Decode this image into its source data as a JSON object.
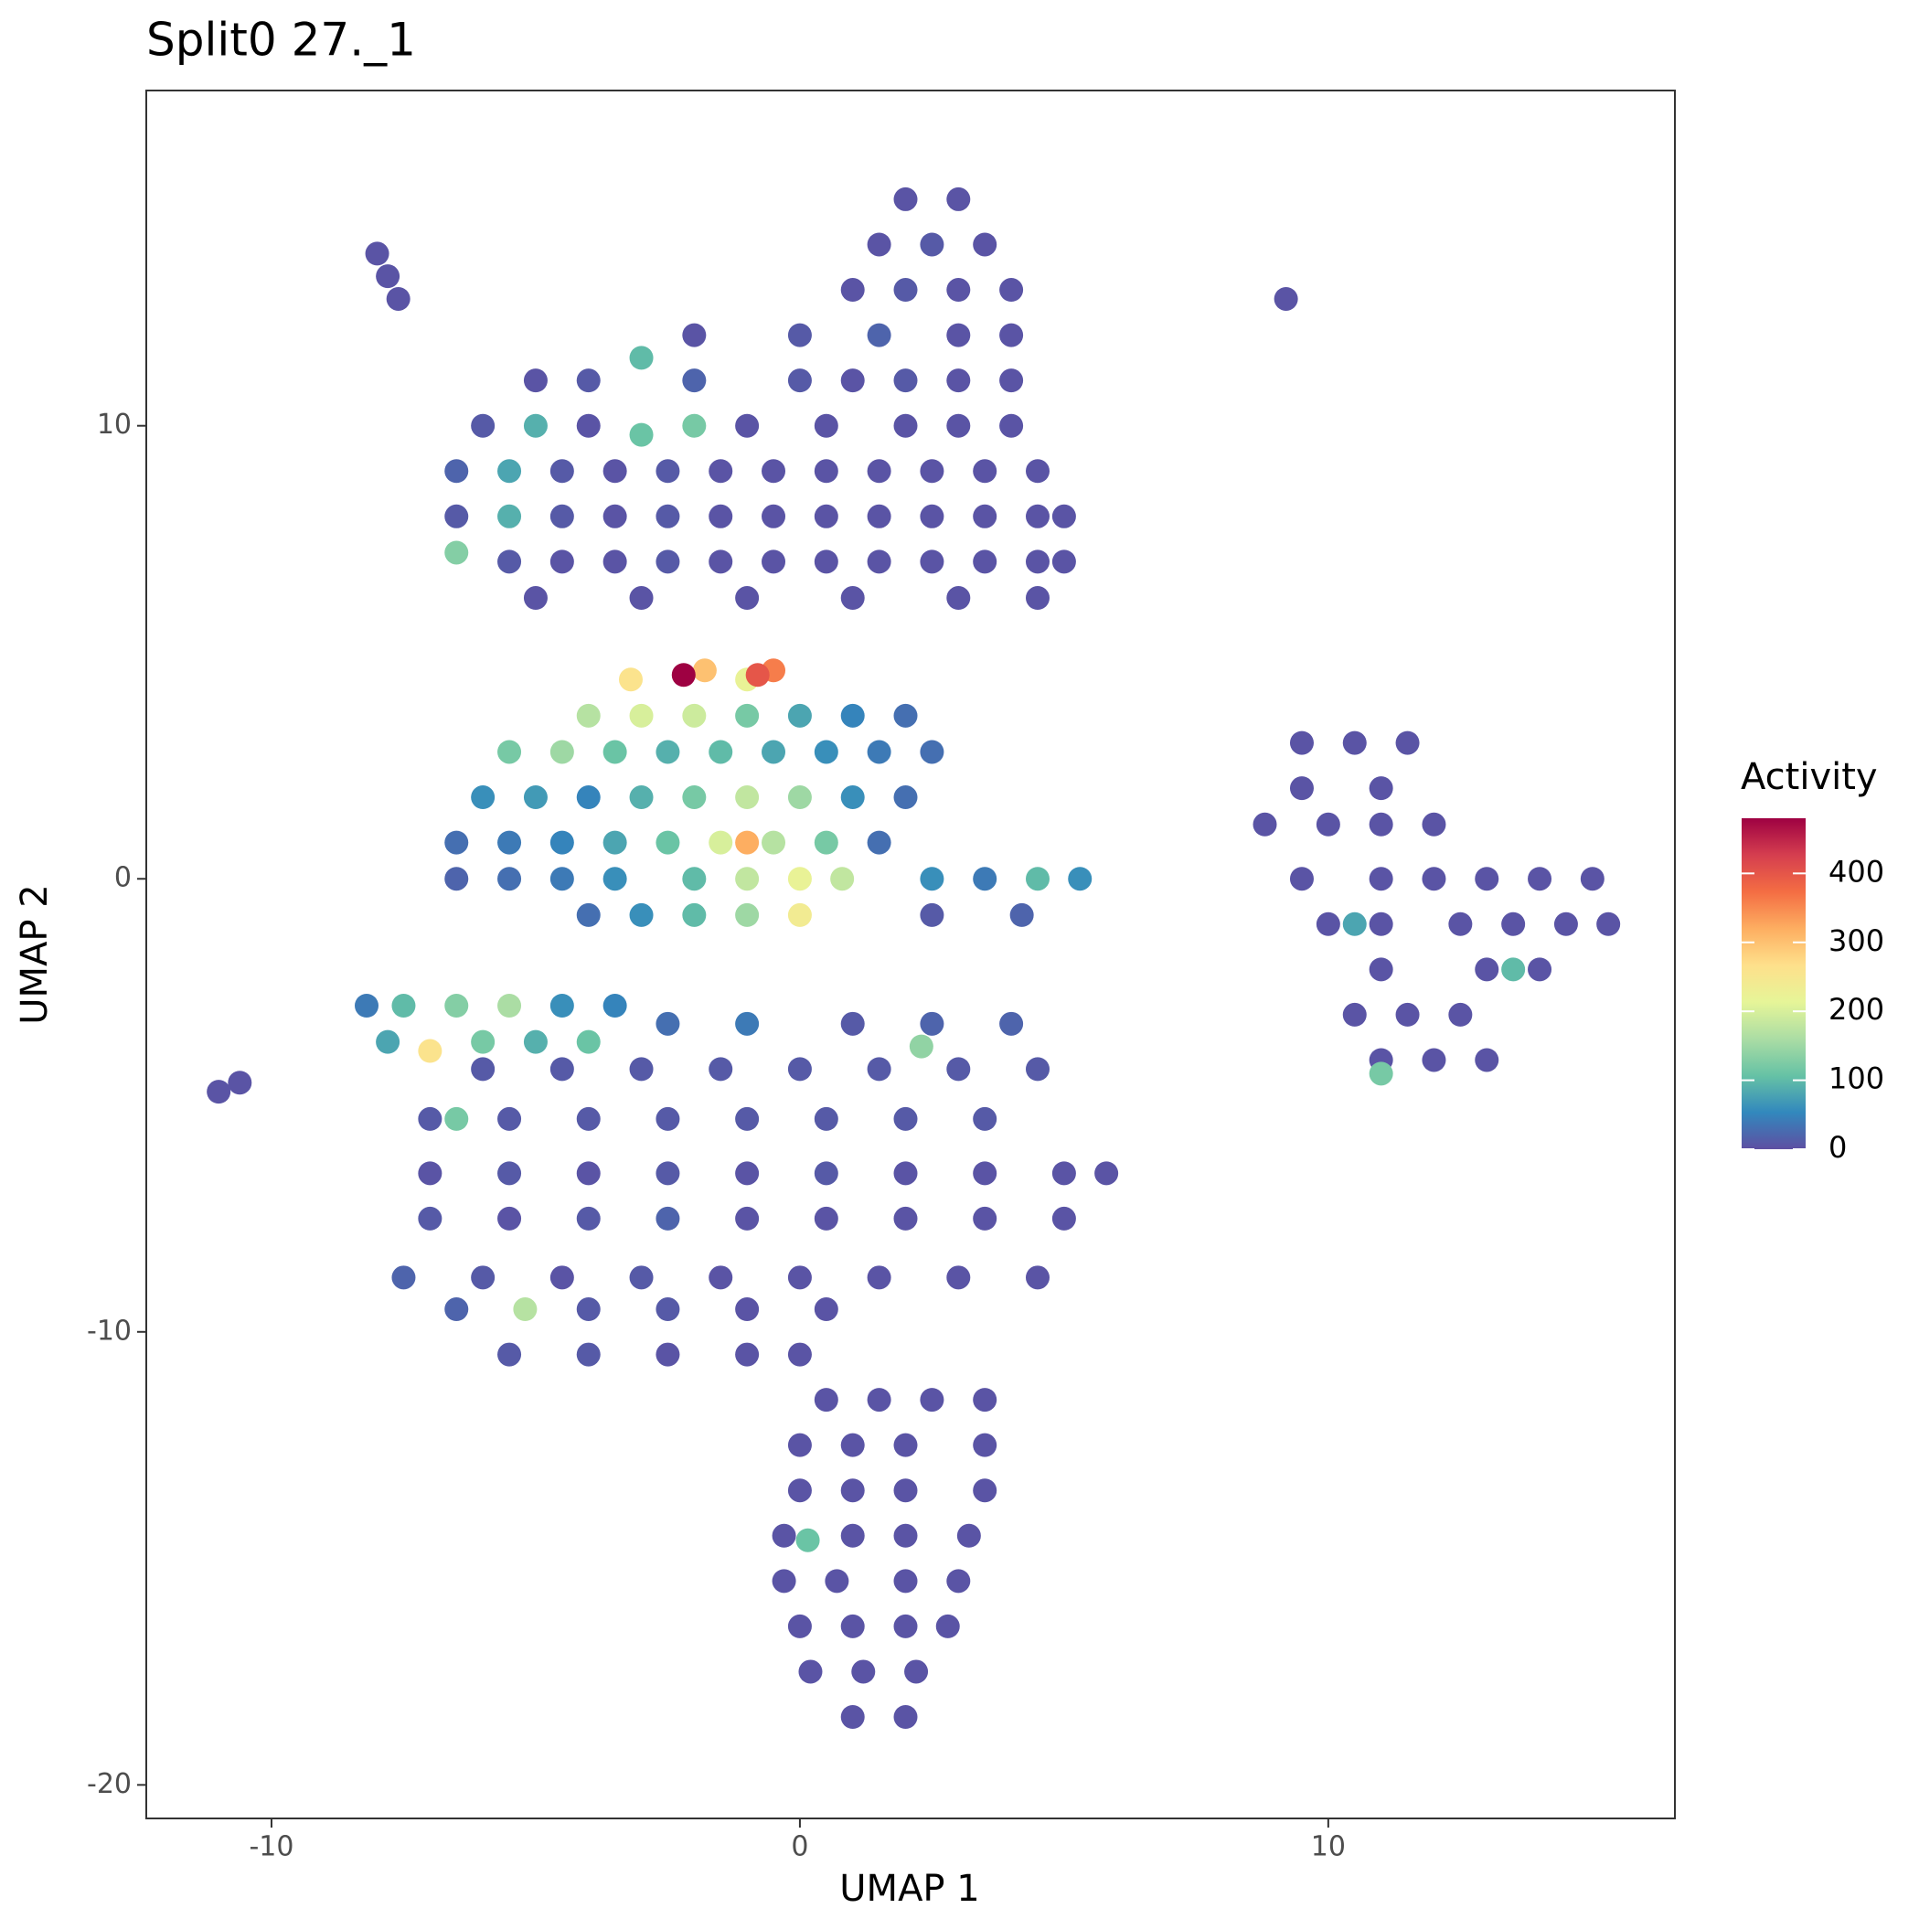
{
  "chart_data": {
    "type": "scatter",
    "title": "Split0 27._1",
    "x_label": "UMAP 1",
    "y_label": "UMAP 2",
    "legend_title": "Activity",
    "xlim": [
      -12.37,
      16.56
    ],
    "ylim": [
      -20.74,
      17.4
    ],
    "xticks": [
      -10,
      0,
      10
    ],
    "yticks": [
      -20,
      -10,
      0,
      10
    ],
    "clim": [
      0,
      480
    ],
    "cticks": [
      0,
      100,
      200,
      300,
      400
    ],
    "colorscale": [
      "#5E4FA2",
      "#3288BD",
      "#66C2A5",
      "#ABDDA4",
      "#E6F598",
      "#FEE08B",
      "#FDAE61",
      "#F46D43",
      "#D53E4F",
      "#9E0142"
    ],
    "points": [
      [
        -8,
        13.8,
        5
      ],
      [
        -7.8,
        13.3,
        5
      ],
      [
        -7.6,
        12.8,
        5
      ],
      [
        9.2,
        12.8,
        5
      ],
      [
        -11,
        -4.7,
        5
      ],
      [
        -10.6,
        -4.5,
        5
      ],
      [
        2,
        15,
        5
      ],
      [
        3,
        15,
        5
      ],
      [
        1.5,
        14,
        5
      ],
      [
        2.5,
        14,
        10
      ],
      [
        3.5,
        14,
        5
      ],
      [
        1,
        13,
        5
      ],
      [
        2,
        13,
        10
      ],
      [
        3,
        13,
        5
      ],
      [
        4,
        13,
        5
      ],
      [
        -2,
        12,
        5
      ],
      [
        0,
        12,
        10
      ],
      [
        1.5,
        12,
        20
      ],
      [
        3,
        12,
        5
      ],
      [
        4,
        12,
        5
      ],
      [
        -5,
        11,
        5
      ],
      [
        -4,
        11,
        10
      ],
      [
        -3,
        11.5,
        100
      ],
      [
        -2,
        11,
        20
      ],
      [
        0,
        11,
        10
      ],
      [
        1,
        11,
        5
      ],
      [
        2,
        11,
        10
      ],
      [
        3,
        11,
        5
      ],
      [
        4,
        11,
        5
      ],
      [
        -6,
        10,
        10
      ],
      [
        -5,
        10,
        90
      ],
      [
        -4,
        10,
        5
      ],
      [
        -3,
        9.8,
        110
      ],
      [
        -2,
        10,
        120
      ],
      [
        -1,
        10,
        5
      ],
      [
        0.5,
        10,
        5
      ],
      [
        2,
        10,
        5
      ],
      [
        3,
        10,
        5
      ],
      [
        4,
        10,
        5
      ],
      [
        -6.5,
        9,
        20
      ],
      [
        -5.5,
        9,
        80
      ],
      [
        -4.5,
        9,
        10
      ],
      [
        -3.5,
        9,
        5
      ],
      [
        -2.5,
        9,
        10
      ],
      [
        -1.5,
        9,
        5
      ],
      [
        -0.5,
        9,
        5
      ],
      [
        0.5,
        9,
        5
      ],
      [
        1.5,
        9,
        5
      ],
      [
        2.5,
        9,
        5
      ],
      [
        3.5,
        9,
        5
      ],
      [
        4.5,
        9,
        5
      ],
      [
        -6.5,
        8,
        10
      ],
      [
        -5.5,
        8,
        90
      ],
      [
        -4.5,
        8,
        10
      ],
      [
        -3.5,
        8,
        5
      ],
      [
        -2.5,
        8,
        10
      ],
      [
        -1.5,
        8,
        5
      ],
      [
        -0.5,
        8,
        5
      ],
      [
        0.5,
        8,
        5
      ],
      [
        1.5,
        8,
        5
      ],
      [
        2.5,
        8,
        5
      ],
      [
        3.5,
        8,
        5
      ],
      [
        4.5,
        8,
        5
      ],
      [
        5,
        8,
        5
      ],
      [
        -6.5,
        7.2,
        130
      ],
      [
        -5.5,
        7,
        10
      ],
      [
        -4.5,
        7,
        5
      ],
      [
        -3.5,
        7,
        5
      ],
      [
        -2.5,
        7,
        10
      ],
      [
        -1.5,
        7,
        5
      ],
      [
        -0.5,
        7,
        5
      ],
      [
        0.5,
        7,
        5
      ],
      [
        1.5,
        7,
        5
      ],
      [
        2.5,
        7,
        5
      ],
      [
        3.5,
        7,
        5
      ],
      [
        4.5,
        7,
        5
      ],
      [
        5,
        7,
        5
      ],
      [
        -5,
        6.2,
        5
      ],
      [
        -3,
        6.2,
        5
      ],
      [
        -1,
        6.2,
        5
      ],
      [
        1,
        6.2,
        5
      ],
      [
        3,
        6.2,
        5
      ],
      [
        4.5,
        6.2,
        5
      ],
      [
        -2.5,
        -3.2,
        30
      ],
      [
        -1,
        -3.2,
        40
      ],
      [
        1,
        -3.2,
        10
      ],
      [
        2.5,
        -3.2,
        20
      ],
      [
        4,
        -3.2,
        20
      ],
      [
        -6,
        -4.2,
        10
      ],
      [
        -4.5,
        -4.2,
        10
      ],
      [
        -3,
        -4.2,
        10
      ],
      [
        -1.5,
        -4.2,
        10
      ],
      [
        0,
        -4.2,
        10
      ],
      [
        1.5,
        -4.2,
        10
      ],
      [
        2.3,
        -3.7,
        140
      ],
      [
        3,
        -4.2,
        10
      ],
      [
        4.5,
        -4.2,
        10
      ],
      [
        -7,
        -5.3,
        10
      ],
      [
        -6.5,
        -5.3,
        120
      ],
      [
        -5.5,
        -5.3,
        10
      ],
      [
        -4,
        -5.3,
        10
      ],
      [
        -2.5,
        -5.3,
        10
      ],
      [
        -1,
        -5.3,
        10
      ],
      [
        0.5,
        -5.3,
        10
      ],
      [
        2,
        -5.3,
        10
      ],
      [
        3.5,
        -5.3,
        10
      ],
      [
        -7,
        -6.5,
        5
      ],
      [
        -5.5,
        -6.5,
        10
      ],
      [
        -4,
        -6.5,
        5
      ],
      [
        -2.5,
        -6.5,
        10
      ],
      [
        -1,
        -6.5,
        5
      ],
      [
        0.5,
        -6.5,
        10
      ],
      [
        2,
        -6.5,
        5
      ],
      [
        3.5,
        -6.5,
        5
      ],
      [
        5,
        -6.5,
        5
      ],
      [
        5.8,
        -6.5,
        5
      ],
      [
        -7,
        -7.5,
        10
      ],
      [
        -5.5,
        -7.5,
        5
      ],
      [
        -4,
        -7.5,
        10
      ],
      [
        -2.5,
        -7.5,
        20
      ],
      [
        -1,
        -7.5,
        5
      ],
      [
        0.5,
        -7.5,
        5
      ],
      [
        2,
        -7.5,
        5
      ],
      [
        3.5,
        -7.5,
        5
      ],
      [
        5,
        -7.5,
        5
      ],
      [
        -7.5,
        -8.8,
        20
      ],
      [
        -6,
        -8.8,
        10
      ],
      [
        -4.5,
        -8.8,
        5
      ],
      [
        -3,
        -8.8,
        10
      ],
      [
        -1.5,
        -8.8,
        5
      ],
      [
        0,
        -8.8,
        5
      ],
      [
        1.5,
        -8.8,
        5
      ],
      [
        3,
        -8.8,
        5
      ],
      [
        4.5,
        -8.8,
        5
      ],
      [
        -6.5,
        -9.5,
        20
      ],
      [
        -5.2,
        -9.5,
        170
      ],
      [
        -4,
        -9.5,
        10
      ],
      [
        -2.5,
        -9.5,
        10
      ],
      [
        -1,
        -9.5,
        5
      ],
      [
        0.5,
        -9.5,
        5
      ],
      [
        -5.5,
        -10.5,
        10
      ],
      [
        -4,
        -10.5,
        10
      ],
      [
        -2.5,
        -10.5,
        5
      ],
      [
        -1,
        -10.5,
        5
      ],
      [
        0,
        -10.5,
        5
      ],
      [
        0.5,
        -11.5,
        5
      ],
      [
        1.5,
        -11.5,
        5
      ],
      [
        2.5,
        -11.5,
        5
      ],
      [
        3.5,
        -11.5,
        5
      ],
      [
        0,
        -12.5,
        5
      ],
      [
        1,
        -12.5,
        5
      ],
      [
        2,
        -12.5,
        5
      ],
      [
        3.5,
        -12.5,
        5
      ],
      [
        0,
        -13.5,
        5
      ],
      [
        1,
        -13.5,
        5
      ],
      [
        2,
        -13.5,
        5
      ],
      [
        3.5,
        -13.5,
        5
      ],
      [
        -0.3,
        -14.5,
        5
      ],
      [
        0.15,
        -14.6,
        110
      ],
      [
        1,
        -14.5,
        5
      ],
      [
        2,
        -14.5,
        5
      ],
      [
        3.2,
        -14.5,
        5
      ],
      [
        -0.3,
        -15.5,
        5
      ],
      [
        0.7,
        -15.5,
        5
      ],
      [
        2,
        -15.5,
        5
      ],
      [
        3,
        -15.5,
        5
      ],
      [
        0,
        -16.5,
        5
      ],
      [
        1,
        -16.5,
        5
      ],
      [
        2,
        -16.5,
        5
      ],
      [
        2.8,
        -16.5,
        5
      ],
      [
        0.2,
        -17.5,
        5
      ],
      [
        1.2,
        -17.5,
        5
      ],
      [
        2.2,
        -17.5,
        5
      ],
      [
        1,
        -18.5,
        5
      ],
      [
        2,
        -18.5,
        5
      ],
      [
        9.5,
        3,
        5
      ],
      [
        10.5,
        3,
        5
      ],
      [
        11.5,
        3,
        5
      ],
      [
        9.5,
        2,
        5
      ],
      [
        11,
        2,
        5
      ],
      [
        8.8,
        1.2,
        5
      ],
      [
        10,
        1.2,
        5
      ],
      [
        11,
        1.2,
        5
      ],
      [
        12,
        1.2,
        5
      ],
      [
        9.5,
        0,
        5
      ],
      [
        11,
        0,
        5
      ],
      [
        12,
        0,
        5
      ],
      [
        13,
        0,
        5
      ],
      [
        14,
        0,
        5
      ],
      [
        15,
        0,
        5
      ],
      [
        10,
        -1,
        5
      ],
      [
        10.5,
        -1,
        80
      ],
      [
        11,
        -1,
        5
      ],
      [
        12.5,
        -1,
        5
      ],
      [
        13.5,
        -1,
        5
      ],
      [
        14.5,
        -1,
        5
      ],
      [
        15.3,
        -1,
        5
      ],
      [
        11,
        -2,
        5
      ],
      [
        13,
        -2,
        5
      ],
      [
        13.5,
        -2,
        100
      ],
      [
        14,
        -2,
        5
      ],
      [
        10.5,
        -3,
        5
      ],
      [
        11.5,
        -3,
        5
      ],
      [
        12.5,
        -3,
        5
      ],
      [
        11,
        -4,
        5
      ],
      [
        11,
        -4.3,
        120
      ],
      [
        12,
        -4,
        5
      ],
      [
        13,
        -4,
        5
      ],
      [
        -8.2,
        -2.8,
        40
      ],
      [
        -7.5,
        -2.8,
        100
      ],
      [
        -6.5,
        -2.8,
        130
      ],
      [
        -5.5,
        -2.8,
        160
      ],
      [
        -4.5,
        -2.8,
        60
      ],
      [
        -3.5,
        -2.8,
        50
      ],
      [
        -7.8,
        -3.6,
        80
      ],
      [
        -7,
        -3.8,
        260
      ],
      [
        -6,
        -3.6,
        120
      ],
      [
        -5,
        -3.6,
        90
      ],
      [
        -4,
        -3.6,
        110
      ],
      [
        -6.5,
        0,
        20
      ],
      [
        -5.5,
        0,
        30
      ],
      [
        -4.5,
        0,
        40
      ],
      [
        -3.5,
        0,
        60
      ],
      [
        -2,
        0,
        100
      ],
      [
        -1,
        0,
        180
      ],
      [
        0,
        0,
        220
      ],
      [
        0.8,
        0,
        180
      ],
      [
        2.5,
        0,
        60
      ],
      [
        3.5,
        0,
        40
      ],
      [
        4.5,
        0,
        100
      ],
      [
        5.3,
        0,
        60
      ],
      [
        -4,
        -0.8,
        30
      ],
      [
        -3,
        -0.8,
        60
      ],
      [
        -2,
        -0.8,
        100
      ],
      [
        -1,
        -0.8,
        150
      ],
      [
        0,
        -0.8,
        240
      ],
      [
        2.5,
        -0.8,
        10
      ],
      [
        4.2,
        -0.8,
        20
      ],
      [
        -6.5,
        0.8,
        30
      ],
      [
        -5.5,
        0.8,
        40
      ],
      [
        -4.5,
        0.8,
        50
      ],
      [
        -3.5,
        0.8,
        80
      ],
      [
        -2.5,
        0.8,
        110
      ],
      [
        -1.5,
        0.8,
        200
      ],
      [
        -1,
        0.8,
        320
      ],
      [
        -0.5,
        0.8,
        170
      ],
      [
        0.5,
        0.8,
        120
      ],
      [
        1.5,
        0.8,
        30
      ],
      [
        -6,
        1.8,
        60
      ],
      [
        -5,
        1.8,
        70
      ],
      [
        -4,
        1.8,
        50
      ],
      [
        -3,
        1.8,
        90
      ],
      [
        -2,
        1.8,
        120
      ],
      [
        -1,
        1.8,
        180
      ],
      [
        0,
        1.8,
        150
      ],
      [
        1,
        1.8,
        60
      ],
      [
        2,
        1.8,
        30
      ],
      [
        -5.5,
        2.8,
        120
      ],
      [
        -4.5,
        2.8,
        150
      ],
      [
        -3.5,
        2.8,
        110
      ],
      [
        -2.5,
        2.8,
        90
      ],
      [
        -1.5,
        2.8,
        100
      ],
      [
        -0.5,
        2.8,
        80
      ],
      [
        0.5,
        2.8,
        60
      ],
      [
        1.5,
        2.8,
        40
      ],
      [
        2.5,
        2.8,
        30
      ],
      [
        -4,
        3.6,
        170
      ],
      [
        -3,
        3.6,
        200
      ],
      [
        -2,
        3.6,
        190
      ],
      [
        -1,
        3.6,
        120
      ],
      [
        0,
        3.6,
        80
      ],
      [
        1,
        3.6,
        50
      ],
      [
        2,
        3.6,
        30
      ],
      [
        -3.2,
        4.4,
        260
      ],
      [
        -1.8,
        4.6,
        300
      ],
      [
        -1,
        4.4,
        220
      ],
      [
        -0.5,
        4.6,
        360
      ],
      [
        -0.8,
        4.5,
        400
      ],
      [
        -2.2,
        4.5,
        480
      ]
    ]
  }
}
